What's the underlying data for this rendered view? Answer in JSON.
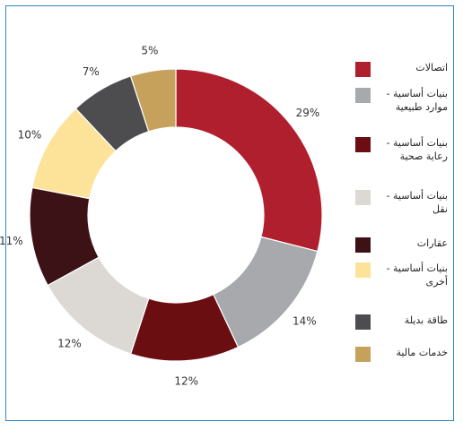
{
  "chart_data": {
    "type": "pie",
    "style": "donut",
    "legend_position": "right",
    "slices": [
      {
        "label": "اتصالات",
        "value": 29,
        "value_label": "29%",
        "color": "#b01f2e"
      },
      {
        "label": "بنيات أساسية - موارد طبيعية",
        "value": 14,
        "value_label": "14%",
        "color": "#a7a9ac"
      },
      {
        "label": "بنيات أساسية - رعاية صحية",
        "value": 12,
        "value_label": "12%",
        "color": "#6b0e12"
      },
      {
        "label": "بنيات أساسية - نقل",
        "value": 12,
        "value_label": "12%",
        "color": "#dcd8d3"
      },
      {
        "label": "عقارات",
        "value": 11,
        "value_label": "11%",
        "color": "#3d1217"
      },
      {
        "label": "بنيات أساسية - أخرى",
        "value": 10,
        "value_label": "10%",
        "color": "#fde29a"
      },
      {
        "label": "طاقة بديلة",
        "value": 7,
        "value_label": "7%",
        "color": "#4d4d4f"
      },
      {
        "label": "خدمات مالية",
        "value": 5,
        "value_label": "5%",
        "color": "#c6a15b"
      }
    ]
  }
}
